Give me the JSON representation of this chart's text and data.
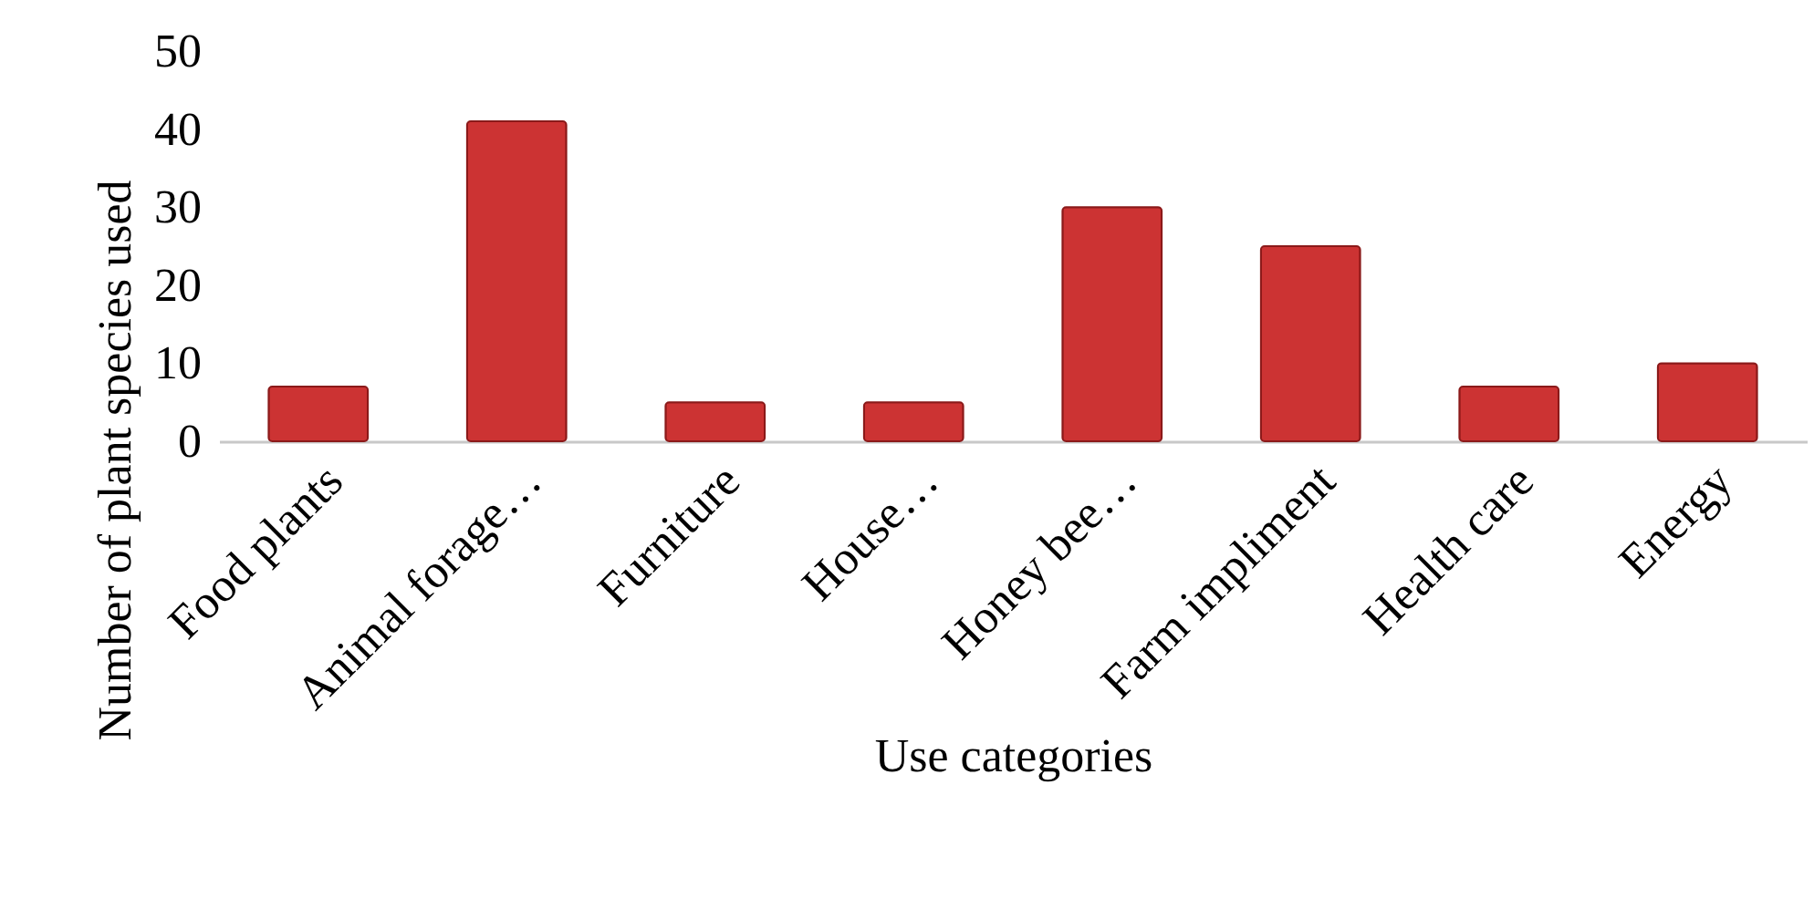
{
  "chart_data": {
    "type": "bar",
    "xlabel": "Use categories",
    "ylabel": "Number of plant  species used",
    "categories": [
      "Food plants",
      "Animal forage…",
      "Furniture",
      "House…",
      "Honey bee…",
      "Farm impliment",
      "Health care",
      "Energy"
    ],
    "values": [
      7,
      41,
      5,
      5,
      30,
      25,
      7,
      10
    ],
    "color": "#cc3333",
    "ylim": [
      0,
      50
    ],
    "yticks": [
      0,
      10,
      20,
      30,
      40,
      50
    ],
    "grid": false
  }
}
